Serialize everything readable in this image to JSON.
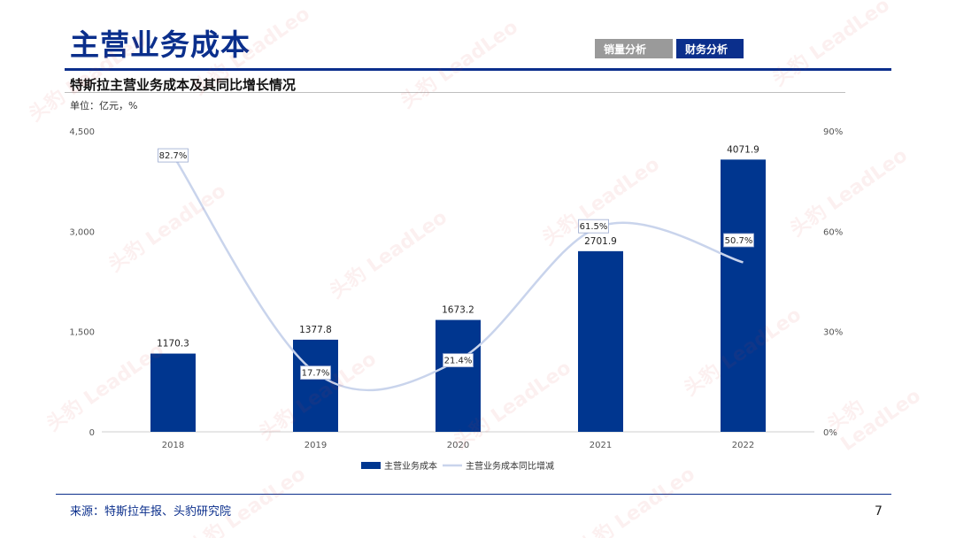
{
  "page": {
    "title": "主营业务成本",
    "tabs": [
      {
        "label": "销量分析",
        "active": false
      },
      {
        "label": "财务分析",
        "active": true
      }
    ],
    "subtitle": "特斯拉主营业务成本及其同比增长情况",
    "unit": "单位：亿元，%",
    "source": "来源：特斯拉年报、头豹研究院",
    "page_number": "7",
    "watermark": "头豹 LeadLeo"
  },
  "colors": {
    "brand": "#0b2f8c",
    "bar": "#00368f",
    "line": "#c9d4ec",
    "tab_inactive": "#9a9a9a"
  },
  "chart_data": {
    "type": "bar",
    "categories": [
      "2018",
      "2019",
      "2020",
      "2021",
      "2022"
    ],
    "series": [
      {
        "name": "主营业务成本",
        "type": "bar",
        "axis": "left",
        "values": [
          1170.3,
          1377.8,
          1673.2,
          2701.9,
          4071.9
        ],
        "labels": [
          "1170.3",
          "1377.8",
          "1673.2",
          "2701.9",
          "4071.9"
        ]
      },
      {
        "name": "主营业务成本同比增减",
        "type": "line",
        "smooth": true,
        "axis": "right",
        "values": [
          82.7,
          17.7,
          21.4,
          61.5,
          50.7
        ],
        "labels": [
          "82.7%",
          "17.7%",
          "21.4%",
          "61.5%",
          "50.7%"
        ]
      }
    ],
    "y_left": {
      "min": 0,
      "max": 4500,
      "ticks": [
        "0",
        "1,500",
        "3,000",
        "4,500"
      ]
    },
    "y_right": {
      "min": 0,
      "max": 90,
      "ticks": [
        "0%",
        "30%",
        "60%",
        "90%"
      ]
    },
    "legend_position": "bottom",
    "grid": false
  }
}
